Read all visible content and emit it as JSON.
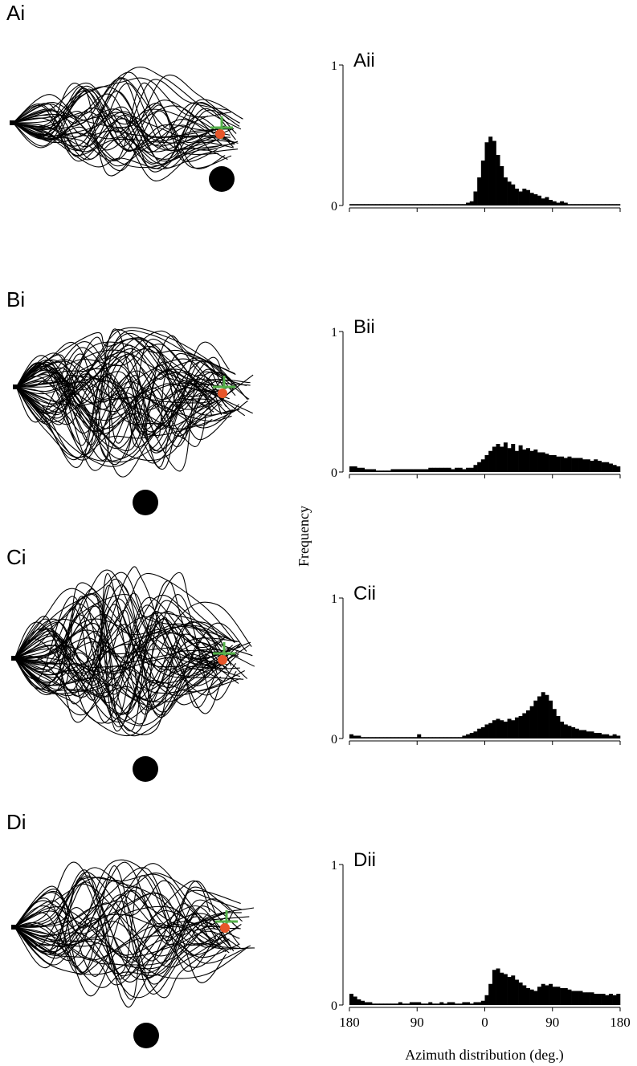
{
  "figure": {
    "ylabel": "Frequency",
    "xlabel": "Azimuth distribution (deg.)"
  },
  "trajectory_panels": [
    {
      "label": "Ai"
    },
    {
      "label": "Bi"
    },
    {
      "label": "Ci"
    },
    {
      "label": "Di"
    }
  ],
  "chart_data": [
    {
      "type": "histogram",
      "title": "Aii",
      "color": "#000000",
      "bins": [
        -180,
        -175,
        -170,
        -165,
        -160,
        -155,
        -150,
        -145,
        -140,
        -135,
        -130,
        -125,
        -120,
        -115,
        -110,
        -105,
        -100,
        -95,
        -90,
        -85,
        -80,
        -75,
        -70,
        -65,
        -60,
        -55,
        -50,
        -45,
        -40,
        -35,
        -30,
        -25,
        -20,
        -15,
        -10,
        -5,
        0,
        5,
        10,
        15,
        20,
        25,
        30,
        35,
        40,
        45,
        50,
        55,
        60,
        65,
        70,
        75,
        80,
        85,
        90,
        95,
        100,
        105,
        110,
        115,
        120,
        125,
        130,
        135,
        140,
        145,
        150,
        155,
        160,
        165,
        170,
        175,
        180
      ],
      "values": [
        0.01,
        0.01,
        0.01,
        0.01,
        0.01,
        0.01,
        0.01,
        0.01,
        0.01,
        0.01,
        0.01,
        0.01,
        0.01,
        0.01,
        0.01,
        0.01,
        0.01,
        0.01,
        0.01,
        0.01,
        0.01,
        0.01,
        0.01,
        0.01,
        0.01,
        0.01,
        0.01,
        0.01,
        0.01,
        0.01,
        0.01,
        0.02,
        0.03,
        0.1,
        0.2,
        0.32,
        0.45,
        0.49,
        0.46,
        0.36,
        0.28,
        0.2,
        0.17,
        0.15,
        0.12,
        0.1,
        0.12,
        0.11,
        0.09,
        0.08,
        0.07,
        0.05,
        0.06,
        0.04,
        0.03,
        0.02,
        0.03,
        0.02,
        0.01,
        0.01,
        0.01,
        0.01,
        0.01,
        0.01,
        0.01,
        0.01,
        0.01,
        0.01,
        0.01,
        0.01,
        0.01,
        0.01
      ],
      "xlim": [
        -180,
        180
      ],
      "xticks": [
        -180,
        -90,
        0,
        90,
        180
      ],
      "ylim": [
        0,
        1
      ],
      "yticks": [
        0,
        1
      ]
    },
    {
      "type": "histogram",
      "title": "Bii",
      "color": "#000000",
      "bins": [
        -180,
        -175,
        -170,
        -165,
        -160,
        -155,
        -150,
        -145,
        -140,
        -135,
        -130,
        -125,
        -120,
        -115,
        -110,
        -105,
        -100,
        -95,
        -90,
        -85,
        -80,
        -75,
        -70,
        -65,
        -60,
        -55,
        -50,
        -45,
        -40,
        -35,
        -30,
        -25,
        -20,
        -15,
        -10,
        -5,
        0,
        5,
        10,
        15,
        20,
        25,
        30,
        35,
        40,
        45,
        50,
        55,
        60,
        65,
        70,
        75,
        80,
        85,
        90,
        95,
        100,
        105,
        110,
        115,
        120,
        125,
        130,
        135,
        140,
        145,
        150,
        155,
        160,
        165,
        170,
        175,
        180
      ],
      "values": [
        0.04,
        0.04,
        0.03,
        0.03,
        0.02,
        0.02,
        0.02,
        0.01,
        0.01,
        0.01,
        0.01,
        0.02,
        0.02,
        0.02,
        0.02,
        0.02,
        0.02,
        0.02,
        0.02,
        0.02,
        0.02,
        0.03,
        0.03,
        0.03,
        0.03,
        0.03,
        0.03,
        0.02,
        0.03,
        0.03,
        0.02,
        0.03,
        0.03,
        0.05,
        0.07,
        0.09,
        0.12,
        0.15,
        0.18,
        0.2,
        0.18,
        0.21,
        0.17,
        0.2,
        0.15,
        0.19,
        0.16,
        0.17,
        0.15,
        0.16,
        0.14,
        0.14,
        0.13,
        0.12,
        0.12,
        0.11,
        0.11,
        0.1,
        0.11,
        0.1,
        0.1,
        0.1,
        0.09,
        0.09,
        0.08,
        0.09,
        0.08,
        0.07,
        0.07,
        0.06,
        0.05,
        0.04
      ],
      "xlim": [
        -180,
        180
      ],
      "xticks": [
        -180,
        -90,
        0,
        90,
        180
      ],
      "ylim": [
        0,
        1
      ],
      "yticks": [
        0,
        1
      ]
    },
    {
      "type": "histogram",
      "title": "Cii",
      "color": "#000000",
      "bins": [
        -180,
        -175,
        -170,
        -165,
        -160,
        -155,
        -150,
        -145,
        -140,
        -135,
        -130,
        -125,
        -120,
        -115,
        -110,
        -105,
        -100,
        -95,
        -90,
        -85,
        -80,
        -75,
        -70,
        -65,
        -60,
        -55,
        -50,
        -45,
        -40,
        -35,
        -30,
        -25,
        -20,
        -15,
        -10,
        -5,
        0,
        5,
        10,
        15,
        20,
        25,
        30,
        35,
        40,
        45,
        50,
        55,
        60,
        65,
        70,
        75,
        80,
        85,
        90,
        95,
        100,
        105,
        110,
        115,
        120,
        125,
        130,
        135,
        140,
        145,
        150,
        155,
        160,
        165,
        170,
        175,
        180
      ],
      "values": [
        0.03,
        0.02,
        0.02,
        0.01,
        0.01,
        0.01,
        0.01,
        0.01,
        0.01,
        0.01,
        0.01,
        0.01,
        0.01,
        0.01,
        0.01,
        0.01,
        0.01,
        0.01,
        0.03,
        0.01,
        0.01,
        0.01,
        0.01,
        0.01,
        0.01,
        0.01,
        0.01,
        0.01,
        0.01,
        0.01,
        0.02,
        0.03,
        0.04,
        0.05,
        0.07,
        0.08,
        0.1,
        0.11,
        0.13,
        0.14,
        0.13,
        0.12,
        0.14,
        0.13,
        0.15,
        0.16,
        0.18,
        0.2,
        0.23,
        0.27,
        0.3,
        0.33,
        0.31,
        0.27,
        0.21,
        0.16,
        0.12,
        0.1,
        0.09,
        0.08,
        0.07,
        0.06,
        0.06,
        0.05,
        0.05,
        0.04,
        0.04,
        0.03,
        0.03,
        0.02,
        0.03,
        0.02
      ],
      "xlim": [
        -180,
        180
      ],
      "xticks": [
        -180,
        -90,
        0,
        90,
        180
      ],
      "ylim": [
        0,
        1
      ],
      "yticks": [
        0,
        1
      ]
    },
    {
      "type": "histogram",
      "title": "Dii",
      "color": "#000000",
      "bins": [
        -180,
        -175,
        -170,
        -165,
        -160,
        -155,
        -150,
        -145,
        -140,
        -135,
        -130,
        -125,
        -120,
        -115,
        -110,
        -105,
        -100,
        -95,
        -90,
        -85,
        -80,
        -75,
        -70,
        -65,
        -60,
        -55,
        -50,
        -45,
        -40,
        -35,
        -30,
        -25,
        -20,
        -15,
        -10,
        -5,
        0,
        5,
        10,
        15,
        20,
        25,
        30,
        35,
        40,
        45,
        50,
        55,
        60,
        65,
        70,
        75,
        80,
        85,
        90,
        95,
        100,
        105,
        110,
        115,
        120,
        125,
        130,
        135,
        140,
        145,
        150,
        155,
        160,
        165,
        170,
        175,
        180
      ],
      "values": [
        0.08,
        0.06,
        0.04,
        0.03,
        0.02,
        0.02,
        0.01,
        0.01,
        0.01,
        0.01,
        0.01,
        0.01,
        0.01,
        0.02,
        0.01,
        0.01,
        0.02,
        0.02,
        0.02,
        0.01,
        0.01,
        0.02,
        0.01,
        0.01,
        0.02,
        0.01,
        0.02,
        0.02,
        0.01,
        0.01,
        0.02,
        0.02,
        0.01,
        0.02,
        0.02,
        0.03,
        0.07,
        0.15,
        0.25,
        0.26,
        0.23,
        0.22,
        0.2,
        0.21,
        0.18,
        0.16,
        0.14,
        0.12,
        0.11,
        0.1,
        0.13,
        0.15,
        0.14,
        0.15,
        0.13,
        0.13,
        0.12,
        0.12,
        0.11,
        0.1,
        0.1,
        0.1,
        0.09,
        0.09,
        0.09,
        0.08,
        0.08,
        0.08,
        0.07,
        0.08,
        0.07,
        0.08
      ],
      "xlim": [
        -180,
        180
      ],
      "xticks": [
        {
          "value": -180,
          "label": "180"
        },
        {
          "value": -90,
          "label": "90"
        },
        {
          "value": 0,
          "label": "0"
        },
        {
          "value": 90,
          "label": "90"
        },
        {
          "value": 180,
          "label": "180"
        }
      ],
      "ylim": [
        0,
        1
      ],
      "yticks": [
        0,
        1
      ]
    }
  ]
}
